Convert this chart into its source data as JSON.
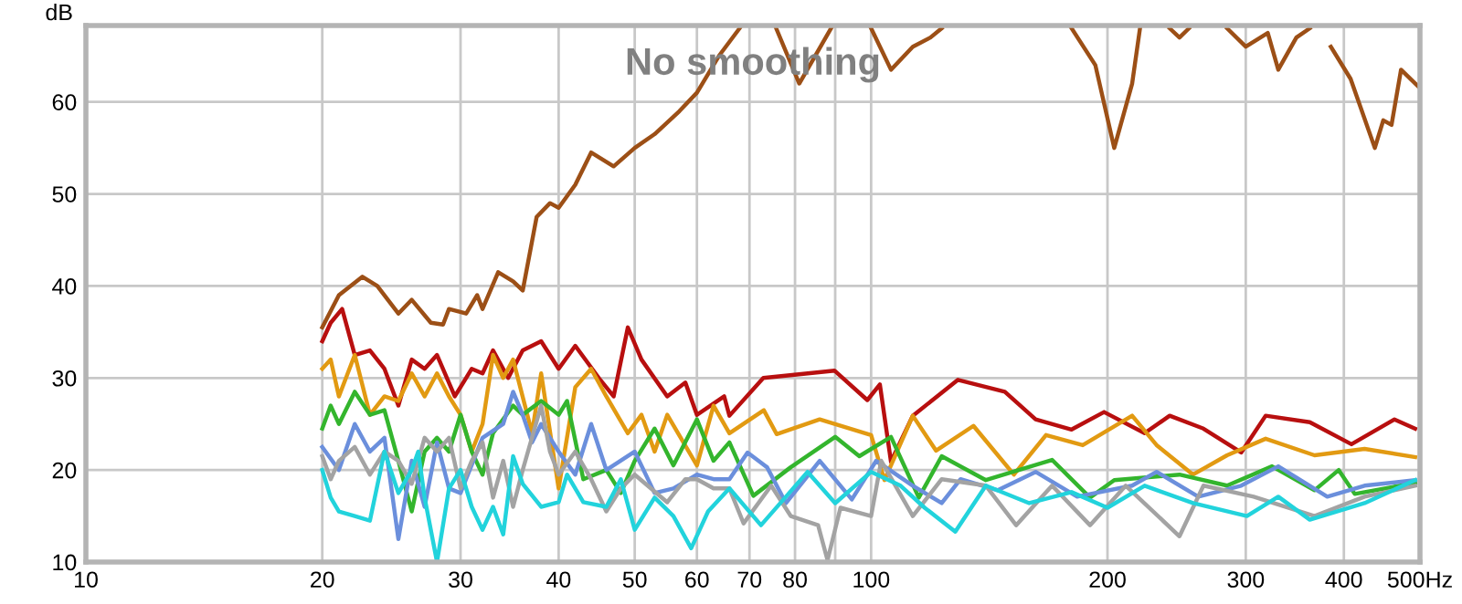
{
  "chart_data": {
    "type": "line",
    "title": "No smoothing",
    "ylabel": "dB",
    "log": "x",
    "grid": true,
    "legend": false,
    "marker": "none",
    "line_style": "solid",
    "xlim": [
      10,
      500
    ],
    "ylim": [
      10,
      68.3
    ],
    "xticks": [
      10,
      20,
      30,
      40,
      50,
      60,
      70,
      80,
      {
        "value": 90,
        "label": null
      },
      100,
      200,
      300,
      400,
      {
        "value": 500,
        "label": "500Hz"
      }
    ],
    "yticks": [
      10,
      20,
      30,
      40,
      50,
      60
    ],
    "series": [
      {
        "color": "#9c4f16",
        "x": [
          20,
          21,
          22.5,
          23.5,
          25,
          26,
          27.5,
          28.5,
          29,
          30.5,
          31.5,
          32,
          33.5,
          35,
          36,
          37.5,
          39,
          40,
          42,
          44,
          47,
          50,
          53,
          57,
          60,
          64,
          68,
          70,
          75.7,
          81,
          88.9,
          95,
          100,
          106,
          113,
          119,
          123,
          150,
          180,
          193,
          204,
          215,
          220,
          235,
          240,
          247,
          254,
          260,
          284,
          300,
          320,
          330,
          348,
          362,
          375,
          385,
          408,
          438,
          449,
          460,
          473,
          500
        ],
        "values": [
          35.5,
          39,
          41,
          40,
          37,
          38.5,
          36,
          35.8,
          37.5,
          37,
          39,
          37.5,
          41.5,
          40.5,
          39.5,
          47.5,
          49,
          48.5,
          51,
          54.5,
          53,
          55,
          56.5,
          59,
          61,
          65,
          68,
          null,
          68,
          62,
          68,
          null,
          68,
          63.5,
          66,
          67,
          68,
          null,
          68,
          64,
          55,
          62,
          68,
          null,
          68,
          67,
          68,
          null,
          68,
          66,
          67.5,
          63.5,
          67,
          68,
          null,
          66,
          62.5,
          55,
          58,
          57.5,
          63.5,
          61.5
        ]
      },
      {
        "color": "#b80f0f",
        "x": [
          20,
          20.5,
          21.2,
          22,
          23,
          24,
          25,
          26,
          27,
          28,
          29.5,
          31,
          32,
          33,
          34.5,
          36,
          38,
          40,
          42,
          45,
          47,
          49,
          51,
          55,
          58,
          60,
          65,
          66,
          72.9,
          89.8,
          98.9,
          102.6,
          106,
          113,
          129,
          148,
          162,
          180,
          198,
          223,
          240,
          265,
          296,
          318,
          362,
          409,
          464,
          493
        ],
        "values": [
          34,
          36,
          37.5,
          32.5,
          33,
          31,
          27,
          32,
          31,
          32.5,
          28,
          31,
          30.5,
          33,
          30,
          33,
          34,
          31,
          33.5,
          30,
          28,
          35.5,
          32,
          28,
          29.5,
          26,
          28,
          25.9,
          30,
          30.8,
          27.6,
          29.3,
          20.9,
          25.9,
          29.8,
          28.5,
          25.5,
          24.4,
          26.3,
          24,
          25.9,
          24.5,
          21.9,
          25.9,
          25.2,
          22.8,
          25.5,
          24.5
        ]
      },
      {
        "color": "#e29a12",
        "x": [
          20,
          20.5,
          21,
          22,
          23,
          24,
          25,
          26,
          27,
          28,
          29,
          30,
          31,
          32,
          33,
          34,
          35,
          37,
          38,
          40,
          42,
          44,
          46,
          49,
          51,
          53,
          55,
          60,
          63,
          66,
          73,
          75.8,
          86,
          100,
          104,
          113,
          121,
          135,
          152,
          167,
          186,
          215,
          231,
          257,
          284,
          318,
          367,
          425,
          493
        ],
        "values": [
          31,
          32,
          28,
          32.5,
          26,
          28,
          27.5,
          30.5,
          28,
          30.5,
          28,
          26,
          22,
          25,
          32.5,
          30,
          32,
          24,
          30.5,
          18,
          29,
          31,
          28,
          24,
          26,
          22,
          26,
          20.5,
          27,
          24,
          26.5,
          23.9,
          25.5,
          23.8,
          18.9,
          25.9,
          22.1,
          24.8,
          19.5,
          23.8,
          22.7,
          25.9,
          22.7,
          19.5,
          21.6,
          23.4,
          21.6,
          22.3,
          21.4
        ]
      },
      {
        "color": "#33b52d",
        "x": [
          20,
          20.5,
          21,
          22,
          23,
          24,
          25,
          26,
          27,
          28,
          29,
          30,
          31,
          32,
          33,
          35,
          36,
          38,
          40,
          41,
          43,
          46,
          48,
          50,
          53,
          56,
          60,
          63,
          66,
          70.8,
          79,
          90,
          96.6,
          106,
          115,
          123,
          140,
          170,
          190,
          204,
          247,
          284,
          324,
          367,
          394,
          413,
          493
        ],
        "values": [
          24.5,
          27,
          25,
          28.5,
          26,
          26.5,
          21,
          15.5,
          22,
          23.5,
          22,
          26,
          22,
          19.5,
          24,
          27,
          26,
          27.5,
          26,
          27.5,
          19,
          20,
          17.5,
          21,
          24.5,
          20.5,
          25.5,
          21,
          23,
          17.2,
          20.3,
          23.6,
          21.5,
          23.6,
          17,
          21.5,
          18.9,
          21.1,
          17,
          18.9,
          19.5,
          18.3,
          20.4,
          17.8,
          20,
          17.4,
          18.6
        ]
      },
      {
        "color": "#6b8fdc",
        "x": [
          20,
          21,
          22,
          23,
          24,
          25,
          26,
          27,
          28,
          29,
          30,
          32,
          34,
          35,
          36,
          37,
          38,
          40,
          42,
          44,
          46,
          50,
          53,
          56,
          60,
          63,
          66,
          69.6,
          73.7,
          77.9,
          86,
          94.5,
          101.5,
          113,
          123,
          130,
          145,
          162,
          183,
          215,
          231,
          261,
          296,
          330,
          381,
          425,
          493
        ],
        "values": [
          22.5,
          20,
          25,
          22,
          23.5,
          12.5,
          21,
          16,
          23,
          18,
          17.5,
          23.5,
          25,
          28.5,
          26,
          23,
          25,
          22,
          19.5,
          25,
          20,
          22,
          17.5,
          18,
          19.5,
          19,
          19,
          21.9,
          20.3,
          16.4,
          21,
          16.8,
          21,
          18.3,
          16.4,
          19,
          17.8,
          19.8,
          17.1,
          18.3,
          19.8,
          17.1,
          18.3,
          20.4,
          17.1,
          18.3,
          18.9
        ]
      },
      {
        "color": "#a3a3a3",
        "x": [
          20,
          20.5,
          21,
          22,
          23,
          24,
          25,
          26,
          27,
          28,
          29,
          30,
          31,
          32,
          33,
          34,
          35,
          36,
          38,
          39,
          40,
          42,
          44,
          46,
          48,
          50,
          55,
          58,
          60,
          63,
          66,
          68.8,
          74.6,
          79,
          85.6,
          88,
          91.4,
          100,
          103,
          113,
          123,
          140,
          153,
          170,
          190,
          211,
          247,
          265,
          307,
          367,
          425,
          493
        ],
        "values": [
          21.5,
          19,
          21,
          22.5,
          19.5,
          22,
          21,
          18.5,
          23.5,
          22,
          23.5,
          18,
          21,
          23,
          17,
          21,
          16,
          20,
          27,
          22,
          19.5,
          22,
          19,
          15.5,
          18,
          19.5,
          16.5,
          19,
          19,
          18,
          18,
          14.2,
          18.3,
          15,
          14,
          10.2,
          15.9,
          15,
          21,
          15,
          19,
          18.3,
          14,
          18.3,
          14,
          18.3,
          12.8,
          18.3,
          17.1,
          15,
          17.1,
          18.3
        ]
      },
      {
        "color": "#22d3dc",
        "x": [
          20,
          20.5,
          21,
          22,
          23,
          24,
          25,
          26,
          26.5,
          27,
          28,
          29,
          30,
          31,
          32,
          33,
          34,
          35,
          36,
          38,
          40,
          41,
          43,
          46,
          48,
          50,
          53,
          56,
          59,
          62,
          66,
          72.4,
          77.9,
          83,
          90,
          100,
          109,
          117,
          128,
          140,
          159,
          180,
          200,
          223,
          257,
          301,
          330,
          362,
          425,
          493
        ],
        "values": [
          20,
          17,
          15.5,
          15,
          14.5,
          22,
          17.5,
          20,
          22,
          17,
          10,
          18,
          20,
          16,
          13.5,
          16,
          13,
          21.5,
          18.5,
          16,
          16.5,
          19.5,
          16.5,
          16,
          19,
          13.5,
          17,
          15,
          11.5,
          15.5,
          18,
          14,
          17.1,
          19.8,
          16.4,
          19.8,
          18.3,
          15.9,
          13.3,
          18.3,
          16.4,
          17.6,
          15.9,
          18.3,
          16.4,
          15,
          17.1,
          14.6,
          16.4,
          18.9
        ]
      }
    ]
  }
}
